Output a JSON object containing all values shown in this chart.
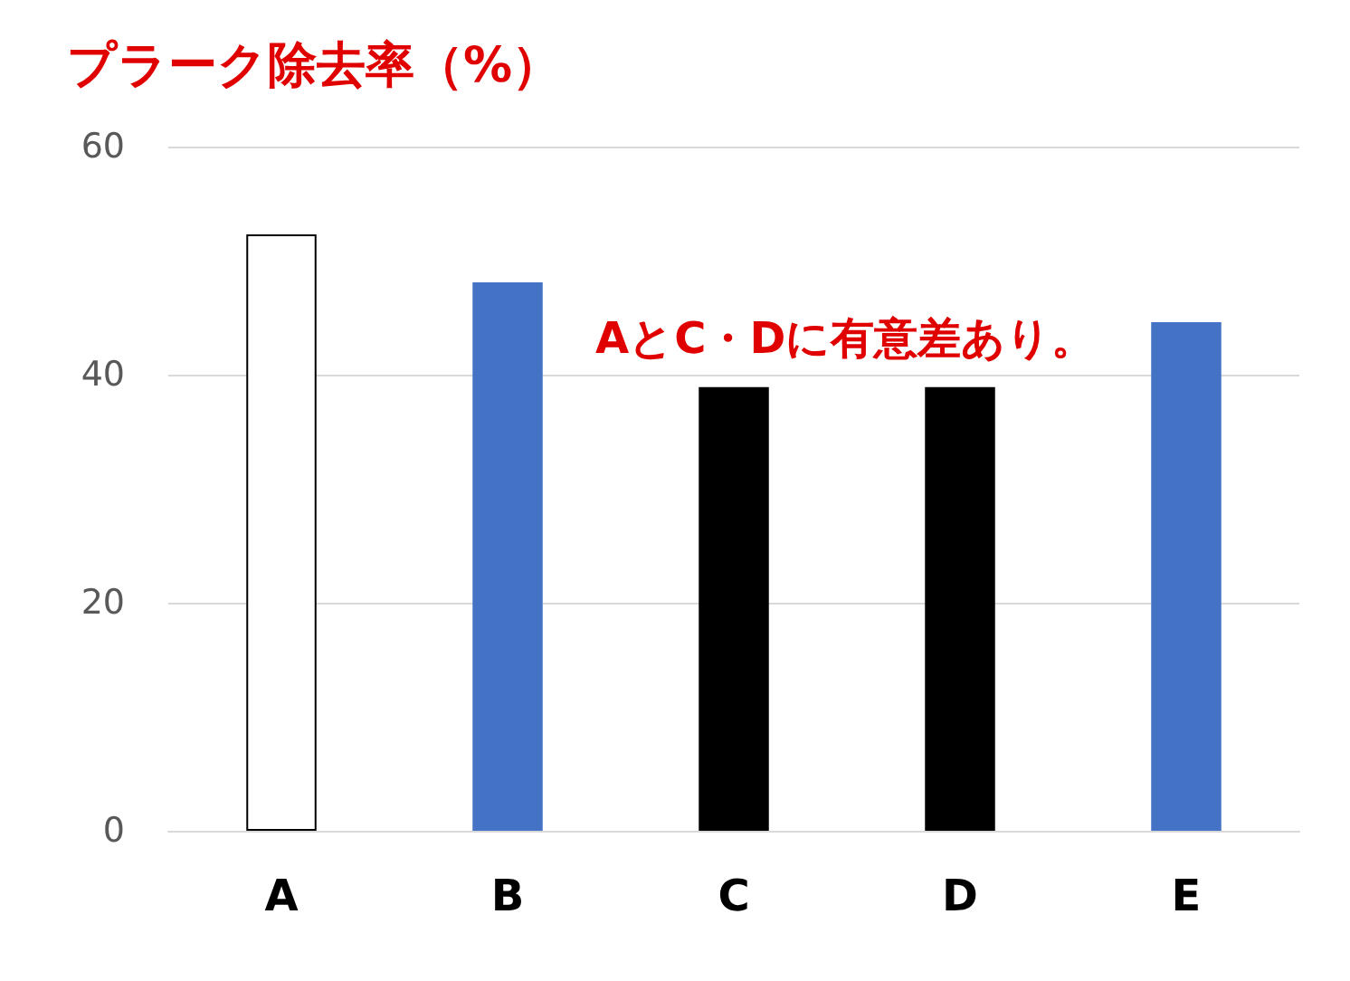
{
  "chart_data": {
    "type": "bar",
    "title": "プラーク除去率（%）",
    "categories": [
      "A",
      "B",
      "C",
      "D",
      "E"
    ],
    "values": [
      52.3,
      48.1,
      38.9,
      38.9,
      44.6
    ],
    "colors": [
      "#ffffff",
      "#4472c4",
      "#000000",
      "#000000",
      "#4472c4"
    ],
    "ylim": [
      0,
      60
    ],
    "yticks": [
      0,
      20,
      40,
      60
    ],
    "grid": "y",
    "annotations": [
      "AとC・Dに有意差あり。"
    ]
  }
}
